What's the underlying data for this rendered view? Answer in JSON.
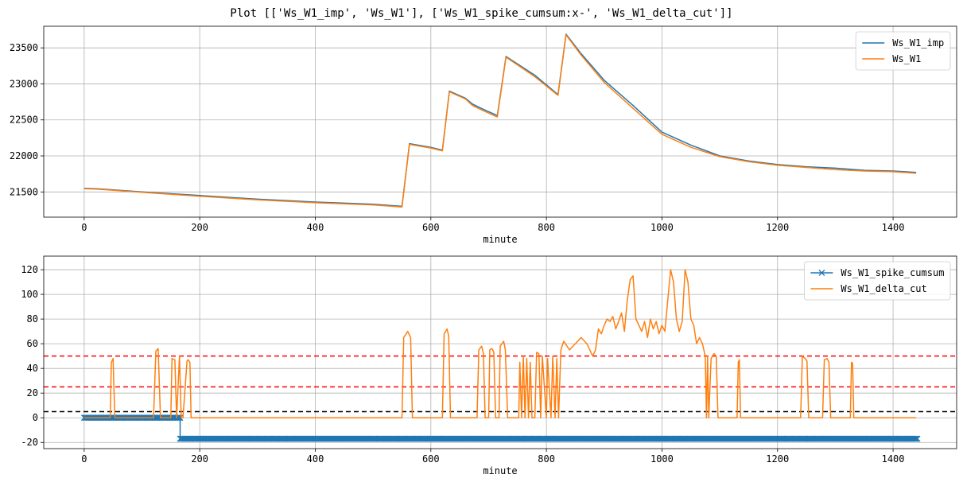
{
  "figure": {
    "title": "Plot [['Ws_W1_imp', 'Ws_W1'], ['Ws_W1_spike_cumsum:x-', 'Ws_W1_delta_cut']]"
  },
  "colors": {
    "blue": "#1f77b4",
    "orange": "#ff7f0e",
    "red": "#ff0000",
    "black": "#000000",
    "grid": "#b0b0b0"
  },
  "chart_data": [
    {
      "type": "line",
      "xlabel": "minute",
      "ylabel": "",
      "xlim": [
        -70,
        1510
      ],
      "ylim": [
        21150,
        23800
      ],
      "xticks": [
        0,
        200,
        400,
        600,
        800,
        1000,
        1200,
        1400
      ],
      "yticks": [
        21500,
        22000,
        22500,
        23000,
        23500
      ],
      "grid": true,
      "legend": "top-right",
      "series": [
        {
          "name": "Ws_W1_imp",
          "color": "#1f77b4",
          "x": [
            0,
            20,
            100,
            200,
            300,
            400,
            500,
            550,
            563,
            600,
            620,
            632,
            660,
            672,
            690,
            715,
            730,
            780,
            820,
            834,
            860,
            900,
            950,
            1000,
            1050,
            1100,
            1150,
            1200,
            1250,
            1300,
            1350,
            1400,
            1440
          ],
          "y": [
            21550,
            21545,
            21500,
            21450,
            21400,
            21360,
            21330,
            21300,
            22170,
            22120,
            22080,
            22900,
            22800,
            22720,
            22650,
            22560,
            23380,
            23120,
            22850,
            23690,
            23420,
            23050,
            22700,
            22330,
            22150,
            22000,
            21930,
            21880,
            21850,
            21830,
            21800,
            21790,
            21770
          ]
        },
        {
          "name": "Ws_W1",
          "color": "#ff7f0e",
          "x": [
            0,
            20,
            100,
            200,
            300,
            400,
            500,
            550,
            563,
            600,
            620,
            632,
            660,
            672,
            690,
            715,
            730,
            780,
            820,
            834,
            860,
            900,
            950,
            1000,
            1050,
            1100,
            1150,
            1200,
            1250,
            1300,
            1350,
            1400,
            1440
          ],
          "y": [
            21545,
            21540,
            21495,
            21440,
            21390,
            21350,
            21320,
            21290,
            22160,
            22110,
            22070,
            22890,
            22790,
            22700,
            22630,
            22540,
            23370,
            23100,
            22840,
            23680,
            23400,
            23020,
            22660,
            22300,
            22120,
            21990,
            21920,
            21870,
            21840,
            21810,
            21790,
            21780,
            21760
          ]
        }
      ]
    },
    {
      "type": "line",
      "xlabel": "minute",
      "ylabel": "",
      "xlim": [
        -70,
        1510
      ],
      "ylim": [
        -25,
        131
      ],
      "xticks": [
        0,
        200,
        400,
        600,
        800,
        1000,
        1200,
        1400
      ],
      "yticks": [
        -20,
        0,
        20,
        40,
        60,
        80,
        100,
        120
      ],
      "grid": true,
      "legend": "top-right",
      "hlines": [
        {
          "y": 50,
          "color": "#ff0000",
          "style": "dashed"
        },
        {
          "y": 25,
          "color": "#ff0000",
          "style": "dashed"
        },
        {
          "y": 5,
          "color": "#000000",
          "style": "dashed"
        }
      ],
      "series": [
        {
          "name": "Ws_W1_spike_cumsum",
          "color": "#1f77b4",
          "marker": "x",
          "x": [
            0,
            166,
            166,
            1442
          ],
          "y": [
            0,
            0,
            -17,
            -17
          ]
        },
        {
          "name": "Ws_W1_delta_cut",
          "color": "#ff7f0e",
          "x": [
            0,
            45,
            47,
            50,
            53,
            120,
            124,
            128,
            132,
            150,
            152,
            157,
            160,
            165,
            168,
            171,
            178,
            180,
            183,
            185,
            550,
            553,
            560,
            565,
            568,
            620,
            623,
            628,
            631,
            634,
            680,
            683,
            688,
            691,
            694,
            700,
            702,
            706,
            709,
            712,
            718,
            720,
            726,
            729,
            733,
            752,
            754,
            757,
            760,
            763,
            766,
            769,
            772,
            775,
            780,
            783,
            787,
            790,
            793,
            800,
            802,
            808,
            811,
            815,
            818,
            821,
            825,
            830,
            840,
            850,
            860,
            870,
            880,
            885,
            890,
            895,
            900,
            905,
            910,
            915,
            920,
            925,
            930,
            935,
            940,
            945,
            950,
            955,
            960,
            965,
            970,
            975,
            980,
            985,
            990,
            995,
            1000,
            1005,
            1010,
            1015,
            1020,
            1025,
            1030,
            1035,
            1040,
            1045,
            1050,
            1055,
            1060,
            1065,
            1070,
            1075,
            1077,
            1079,
            1081,
            1085,
            1090,
            1094,
            1097,
            1130,
            1132,
            1134,
            1136,
            1240,
            1243,
            1248,
            1251,
            1254,
            1278,
            1281,
            1286,
            1289,
            1292,
            1326,
            1328,
            1330,
            1332,
            1440
          ],
          "y": [
            0,
            0,
            45,
            48,
            0,
            0,
            54,
            56,
            0,
            0,
            48,
            47,
            0,
            50,
            0,
            0,
            46,
            47,
            45,
            0,
            0,
            65,
            70,
            65,
            0,
            0,
            68,
            72,
            66,
            0,
            0,
            55,
            58,
            52,
            0,
            0,
            55,
            56,
            53,
            0,
            0,
            58,
            62,
            55,
            0,
            0,
            45,
            0,
            50,
            0,
            48,
            0,
            45,
            0,
            0,
            53,
            52,
            0,
            50,
            0,
            48,
            0,
            50,
            0,
            48,
            0,
            55,
            62,
            55,
            60,
            65,
            60,
            50,
            55,
            72,
            68,
            75,
            80,
            78,
            82,
            72,
            78,
            85,
            70,
            95,
            112,
            115,
            80,
            75,
            70,
            78,
            65,
            80,
            72,
            78,
            68,
            75,
            70,
            95,
            120,
            110,
            80,
            70,
            78,
            120,
            110,
            80,
            75,
            60,
            65,
            60,
            50,
            0,
            50,
            0,
            48,
            52,
            50,
            0,
            0,
            45,
            47,
            0,
            0,
            50,
            48,
            46,
            0,
            0,
            47,
            48,
            45,
            0,
            0,
            45,
            44,
            0,
            0
          ]
        }
      ]
    }
  ]
}
